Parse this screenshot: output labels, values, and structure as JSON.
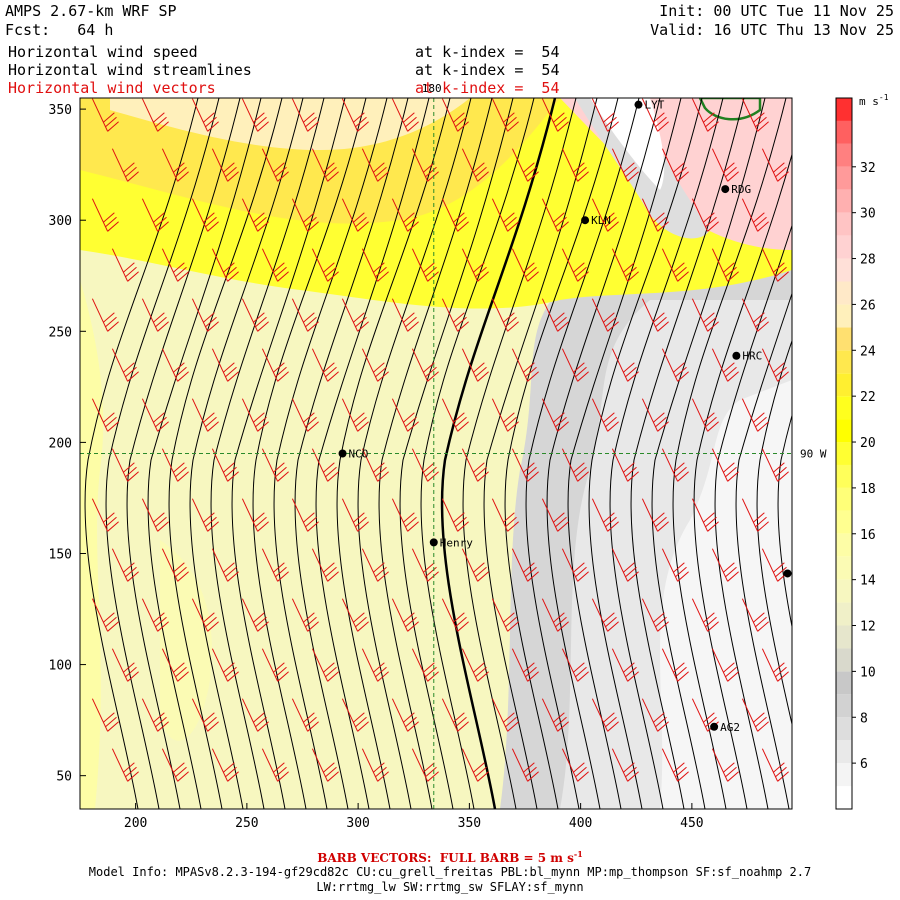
{
  "header": {
    "model": "AMPS 2.67-km WRF SP",
    "forecast": "Fcst:   64 h",
    "init": "Init: 00 UTC Tue 11 Nov 25",
    "valid": "Valid: 16 UTC Thu 13 Nov 25",
    "fields": [
      {
        "name": "Horizontal wind speed",
        "level": "at k-index =  54",
        "color": "#000000"
      },
      {
        "name": "Horizontal wind streamlines",
        "level": "at k-index =  54",
        "color": "#000000"
      },
      {
        "name": "Horizontal wind vectors",
        "level": "at k-index =  54",
        "color": "#e01010"
      }
    ]
  },
  "chart_data": {
    "type": "heatmap",
    "title": "Horizontal wind speed / streamlines / vectors at k-index = 54",
    "x_ticks": [
      200,
      250,
      300,
      350,
      400,
      450
    ],
    "y_ticks": [
      50,
      100,
      150,
      200,
      250,
      300,
      350
    ],
    "xlim": [
      175,
      495
    ],
    "ylim": [
      35,
      355
    ],
    "colorbar": {
      "unit": "m s",
      "unit_exp": "-1",
      "labels": [
        6,
        8,
        10,
        12,
        14,
        16,
        18,
        20,
        22,
        24,
        26,
        28,
        30,
        32
      ],
      "levels": [
        4,
        5,
        6,
        7,
        8,
        9,
        10,
        11,
        12,
        13,
        14,
        15,
        16,
        17,
        18,
        19,
        20,
        21,
        22,
        23,
        24,
        25,
        26,
        27,
        28,
        29,
        30,
        31,
        32,
        33,
        34,
        35
      ],
      "colors": [
        "#ffffff",
        "#f4f4f4",
        "#e9e9e9",
        "#dddddd",
        "#d2d2d2",
        "#c8c8c8",
        "#d9d9cc",
        "#e6e6cc",
        "#f0f0c8",
        "#f7f7c0",
        "#fbfbb4",
        "#fdfda6",
        "#ffff90",
        "#ffff78",
        "#ffff5a",
        "#ffff32",
        "#ffff00",
        "#ffff1e",
        "#ffef30",
        "#ffe84e",
        "#ffe070",
        "#fff0bb",
        "#ffe9c8",
        "#ffe0d8",
        "#ffd2d2",
        "#ffc4c4",
        "#ffb0b0",
        "#ff9a9a",
        "#ff8080",
        "#ff6060",
        "#ff3030"
      ]
    },
    "grid_lines": {
      "x": 334,
      "y": 195,
      "x_label": "180",
      "y_label": "90 W"
    },
    "stations": [
      {
        "name": "NCO",
        "x": 293,
        "y": 195
      },
      {
        "name": "Henry",
        "x": 334,
        "y": 155
      },
      {
        "name": "KLN",
        "x": 402,
        "y": 300
      },
      {
        "name": "LYT",
        "x": 426,
        "y": 352
      },
      {
        "name": "RDG",
        "x": 465,
        "y": 314
      },
      {
        "name": "HRC",
        "x": 470,
        "y": 239
      },
      {
        "name": "AG2",
        "x": 460,
        "y": 72
      },
      {
        "name": "",
        "x": 493,
        "y": 141
      }
    ]
  },
  "footer": {
    "barb_note": "BARB VECTORS:  FULL BARB = 5 m s",
    "barb_exp": "-1",
    "model_info_1": "Model Info: MPASv8.2.3-194-gf29cd82c CU:cu_grell_freitas PBL:bl_mynn MP:mp_thompson SF:sf_noahmp 2.7",
    "model_info_2": "LW:rrtmg_lw SW:rrtmg_sw SFLAY:sf_mynn"
  }
}
